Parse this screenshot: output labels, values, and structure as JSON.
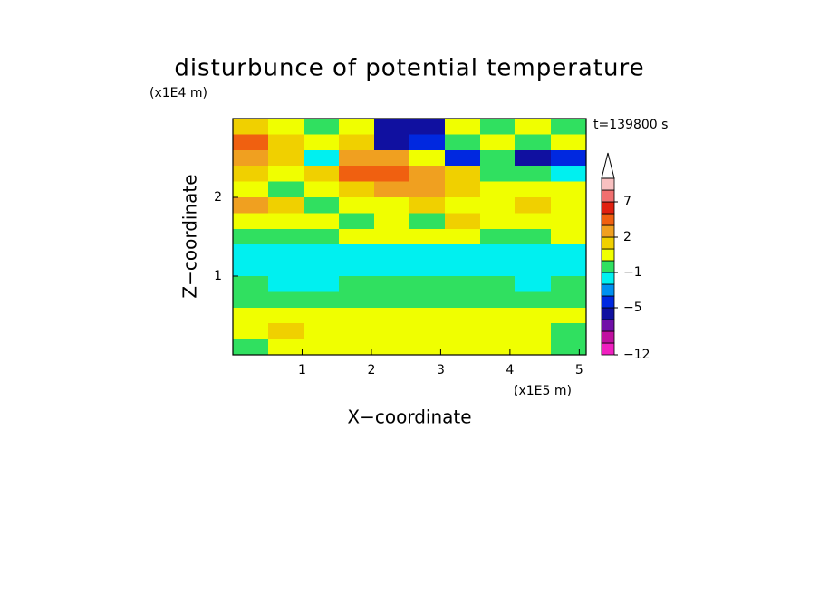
{
  "chart_data": {
    "type": "contour",
    "title": "disturbunce of potential temperature",
    "y_unit": "(x1E4 m)",
    "x_unit": "(x1E5 m)",
    "time_label": "t=139800 s",
    "x_label": "X−coordinate",
    "y_label": "Z−coordinate",
    "xlim": [
      0,
      5.1
    ],
    "ylim": [
      0,
      3
    ],
    "xticks": [
      1,
      2,
      3,
      4,
      5
    ],
    "yticks": [
      1,
      2
    ],
    "levels": [
      -12,
      -10,
      -8,
      -6,
      -5,
      -4,
      -3,
      -1,
      0,
      1,
      2,
      3,
      5,
      7,
      9,
      11
    ],
    "level_colors": [
      "#f020c0",
      "#c010a0",
      "#7010a8",
      "#1010a0",
      "#0028e0",
      "#0090f0",
      "#00f0f0",
      "#30e060",
      "#f0ff00",
      "#f0d000",
      "#f0a020",
      "#f06010",
      "#e02010",
      "#f07070",
      "#f8c0c0"
    ],
    "colorbar_ticks": [
      {
        "value": -12,
        "label": "−12"
      },
      {
        "value": -5,
        "label": "−5"
      },
      {
        "value": -1,
        "label": "−1"
      },
      2,
      7
    ],
    "z": [
      [
        1.5,
        0.5,
        -0.5,
        0.5,
        -5.5,
        -5.5,
        0.5,
        -0.5,
        0.5,
        -0.5
      ],
      [
        3.5,
        1.5,
        0.5,
        1.5,
        -5.5,
        -4.5,
        -0.5,
        0.5,
        -0.5,
        0.5
      ],
      [
        2.5,
        1.5,
        -1.5,
        2.5,
        2.5,
        0.5,
        -4.5,
        -0.5,
        -5.5,
        -4.5
      ],
      [
        1.5,
        0.5,
        1.5,
        3.5,
        3.5,
        2.5,
        1.5,
        -0.5,
        -0.5,
        -1.5
      ],
      [
        0.5,
        -0.5,
        0.5,
        1.5,
        2.5,
        2.5,
        1.5,
        0.5,
        0.5,
        0.5
      ],
      [
        2.5,
        1.5,
        -0.5,
        0.5,
        0.5,
        1.5,
        0.5,
        0.5,
        1.5,
        0.5
      ],
      [
        0.5,
        0.5,
        0.5,
        -0.5,
        0.5,
        -0.5,
        1.5,
        0.5,
        0.5,
        0.5
      ],
      [
        -0.5,
        -0.5,
        -0.5,
        0.5,
        0.5,
        0.5,
        0.5,
        -0.5,
        -0.5,
        0.5
      ],
      [
        -1.5,
        -1.5,
        -1.5,
        -1.5,
        -1.5,
        -1.5,
        -1.5,
        -1.5,
        -1.5,
        -1.5
      ],
      [
        -1.5,
        -1.5,
        -1.5,
        -1.5,
        -1.5,
        -1.5,
        -1.5,
        -1.5,
        -1.5,
        -1.5
      ],
      [
        -0.5,
        -1.5,
        -1.5,
        -0.5,
        -0.5,
        -0.5,
        -0.5,
        -0.5,
        -1.5,
        -0.5
      ],
      [
        -0.5,
        -0.5,
        -0.5,
        -0.5,
        -0.5,
        -0.5,
        -0.5,
        -0.5,
        -0.5,
        -0.5
      ],
      [
        0.5,
        0.5,
        0.5,
        0.5,
        0.5,
        0.5,
        0.5,
        0.5,
        0.5,
        0.5
      ],
      [
        0.5,
        1.5,
        0.5,
        0.5,
        0.5,
        0.5,
        0.5,
        0.5,
        0.5,
        -0.5
      ],
      [
        -0.5,
        0.5,
        0.5,
        0.5,
        0.5,
        0.5,
        0.5,
        0.5,
        0.5,
        -0.5
      ]
    ]
  }
}
